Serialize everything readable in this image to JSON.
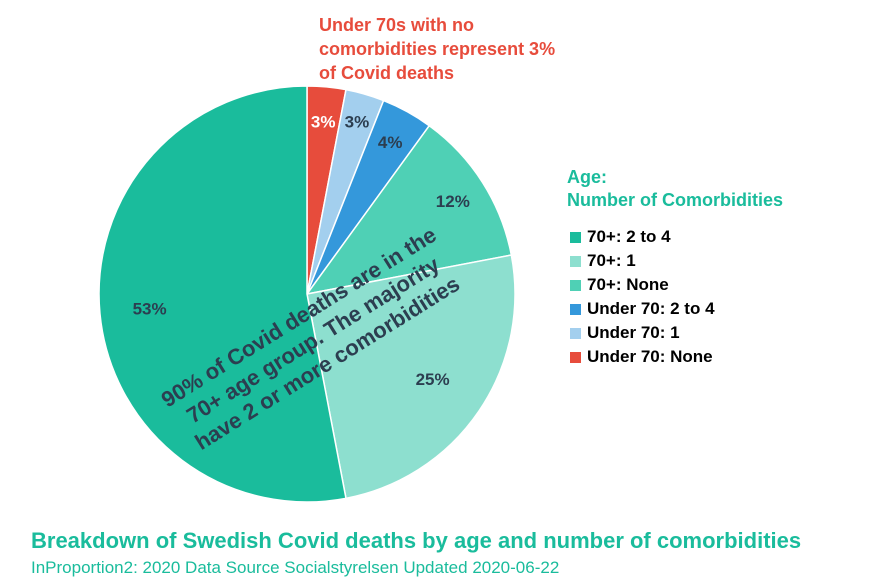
{
  "chart_data": {
    "type": "pie",
    "title": "Breakdown of Swedish Covid deaths by age and number of comorbidities",
    "subtitle": "InProportion2: 2020 Data Source Socialstyrelsen Updated 2020-06-22",
    "legend_title": [
      "Age:",
      "Number of Comorbidities"
    ],
    "legend_position": "right",
    "slices": [
      {
        "label": "Under 70: None",
        "value": 3,
        "display": "3%",
        "color": "#e74c3c",
        "label_color": "#ffffff"
      },
      {
        "label": "Under 70: 1",
        "value": 3,
        "display": "3%",
        "color": "#a3cfee",
        "label_color": "#2c3e50"
      },
      {
        "label": "Under 70: 2 to 4",
        "value": 4,
        "display": "4%",
        "color": "#3498db",
        "label_color": "#2c3e50"
      },
      {
        "label": "70+: None",
        "value": 12,
        "display": "12%",
        "color": "#4fd0b5",
        "label_color": "#2c3e50"
      },
      {
        "label": "70+: 1",
        "value": 25,
        "display": "25%",
        "color": "#8ddfcf",
        "label_color": "#2c3e50"
      },
      {
        "label": "70+: 2 to 4",
        "value": 53,
        "display": "53%",
        "color": "#1abc9c",
        "label_color": "#2c3e50"
      }
    ],
    "legend_order": [
      "70+: 2 to 4",
      "70+: 1",
      "70+: None",
      "Under 70: 2 to 4",
      "Under 70: 1",
      "Under 70: None"
    ],
    "annotations": {
      "callout": [
        "Under 70s with no",
        "comorbidities represent 3%",
        "of Covid deaths"
      ],
      "overlay": [
        "90% of Covid deaths are in the",
        "70+ age group. The majority",
        "have 2 or more comorbidities"
      ]
    }
  }
}
